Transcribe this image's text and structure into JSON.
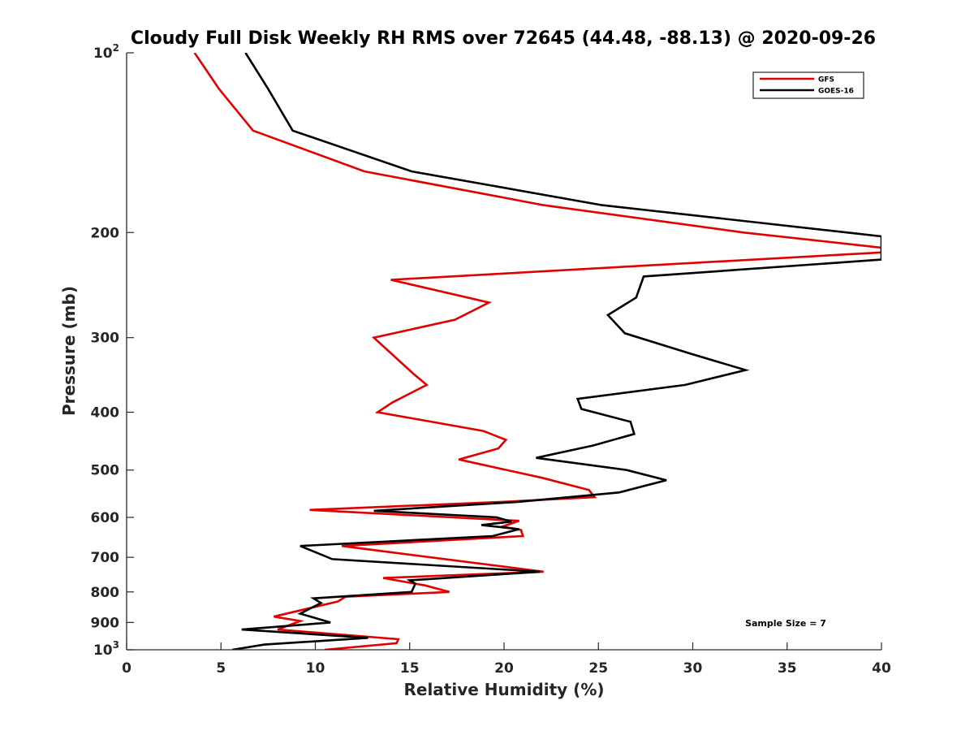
{
  "chart_data": {
    "type": "line",
    "title": "Cloudy Full Disk Weekly RH RMS over 72645 (44.48, -88.13) @ 2020-09-26",
    "xlabel": "Relative Humidity (%)",
    "ylabel": "Pressure (mb)",
    "xlim": [
      0,
      40
    ],
    "ylim": [
      100,
      1000
    ],
    "yscale": "log",
    "y_reversed": true,
    "grid": false,
    "x_ticks": [
      0,
      5,
      10,
      15,
      20,
      25,
      30,
      35,
      40
    ],
    "x_tick_labels": [
      "0",
      "5",
      "10",
      "15",
      "20",
      "25",
      "30",
      "35",
      "40"
    ],
    "y_ticks": [
      100,
      200,
      300,
      400,
      500,
      600,
      700,
      800,
      900,
      1000
    ],
    "y_tick_labels": [
      "10^2",
      "200",
      "300",
      "400",
      "500",
      "600",
      "700",
      "800",
      "900",
      "10^3"
    ],
    "legend_placement": "top-right",
    "annotation": "Sample Size = 7",
    "series": [
      {
        "name": "GFS",
        "color": "#e00000",
        "points": [
          [
            3.6,
            100
          ],
          [
            4.9,
            115
          ],
          [
            6.7,
            135
          ],
          [
            12.6,
            158
          ],
          [
            22.1,
            180
          ],
          [
            32.7,
            200
          ],
          [
            40.0,
            212
          ],
          [
            40.0,
            216
          ],
          [
            14.0,
            240
          ],
          [
            19.2,
            262
          ],
          [
            17.4,
            280
          ],
          [
            13.1,
            300
          ],
          [
            15.2,
            345
          ],
          [
            15.9,
            360
          ],
          [
            14.1,
            385
          ],
          [
            13.3,
            400
          ],
          [
            18.9,
            430
          ],
          [
            20.1,
            445
          ],
          [
            19.7,
            460
          ],
          [
            17.6,
            480
          ],
          [
            22.0,
            515
          ],
          [
            24.5,
            540
          ],
          [
            24.8,
            555
          ],
          [
            20.0,
            565
          ],
          [
            9.7,
            583
          ],
          [
            20.8,
            608
          ],
          [
            19.9,
            622
          ],
          [
            20.9,
            630
          ],
          [
            21.0,
            645
          ],
          [
            11.4,
            670
          ],
          [
            22.1,
            740
          ],
          [
            13.6,
            758
          ],
          [
            15.8,
            780
          ],
          [
            17.1,
            800
          ],
          [
            11.6,
            815
          ],
          [
            11.2,
            830
          ],
          [
            7.8,
            880
          ],
          [
            9.2,
            895
          ],
          [
            8.0,
            925
          ],
          [
            14.4,
            960
          ],
          [
            14.3,
            975
          ],
          [
            10.5,
            1000
          ]
        ]
      },
      {
        "name": "GOES-16",
        "color": "#000000",
        "points": [
          [
            6.3,
            100
          ],
          [
            7.5,
            115
          ],
          [
            8.8,
            135
          ],
          [
            15.1,
            158
          ],
          [
            25.2,
            180
          ],
          [
            38.2,
            200
          ],
          [
            40.0,
            203
          ],
          [
            40.0,
            222
          ],
          [
            27.4,
            237
          ],
          [
            27.0,
            257
          ],
          [
            25.5,
            275
          ],
          [
            26.4,
            295
          ],
          [
            30.0,
            320
          ],
          [
            32.8,
            340
          ],
          [
            29.6,
            360
          ],
          [
            23.9,
            380
          ],
          [
            24.1,
            395
          ],
          [
            26.7,
            415
          ],
          [
            26.9,
            435
          ],
          [
            24.7,
            455
          ],
          [
            21.7,
            477
          ],
          [
            26.5,
            500
          ],
          [
            28.6,
            520
          ],
          [
            26.1,
            545
          ],
          [
            20.8,
            565
          ],
          [
            13.1,
            585
          ],
          [
            19.6,
            600
          ],
          [
            20.4,
            610
          ],
          [
            18.8,
            618
          ],
          [
            20.8,
            628
          ],
          [
            19.4,
            645
          ],
          [
            9.2,
            670
          ],
          [
            10.9,
            705
          ],
          [
            21.9,
            740
          ],
          [
            15.0,
            765
          ],
          [
            15.3,
            775
          ],
          [
            15.1,
            800
          ],
          [
            9.9,
            820
          ],
          [
            10.3,
            835
          ],
          [
            9.2,
            870
          ],
          [
            10.8,
            900
          ],
          [
            6.1,
            925
          ],
          [
            12.8,
            955
          ],
          [
            7.3,
            980
          ],
          [
            5.6,
            1000
          ]
        ]
      }
    ]
  }
}
